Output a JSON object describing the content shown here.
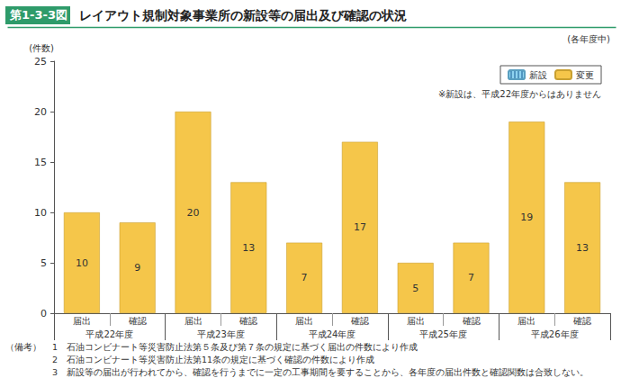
{
  "chart_data": {
    "type": "bar",
    "figure_label": "第1-3-3図",
    "title": "レイアウト規制対象事業所の新設等の届出及び確認の状況",
    "subtitle": "(各年度中)",
    "y_label": "(件数)",
    "annotation": "※新設は、平成22年度からはありません",
    "categories": [
      "届出",
      "確認",
      "届出",
      "確認",
      "届出",
      "確認",
      "届出",
      "確認",
      "届出",
      "確認"
    ],
    "x_groups": [
      "平成22年度",
      "平成23年度",
      "平成24年度",
      "平成25年度",
      "平成26年度"
    ],
    "series": [
      {
        "name": "新設",
        "color": "#8fd3f0",
        "values": [
          null,
          null,
          null,
          null,
          null,
          null,
          null,
          null,
          null,
          null
        ],
        "data_labels": false
      },
      {
        "name": "変更",
        "color": "#f5c64a",
        "values": [
          10,
          9,
          20,
          13,
          7,
          17,
          5,
          7,
          19,
          13
        ],
        "data_labels": true
      }
    ],
    "ylim": [
      0,
      25
    ],
    "yticks": [
      0,
      5,
      10,
      15,
      20,
      25
    ],
    "grid": false,
    "legend": "top-right",
    "notes_heading": "（備考）",
    "notes": [
      "1　石油コンビナート等災害防止法第５条及び第７条の規定に基づく届出の件数により作成",
      "2　石油コンビナート等災害防止法第11条の規定に基づく確認の件数により作成",
      "3　新設等の届出が行われてから、確認を行うまでに一定の工事期間を要することから、各年度の届出件数と確認関数は合致しない。"
    ]
  }
}
